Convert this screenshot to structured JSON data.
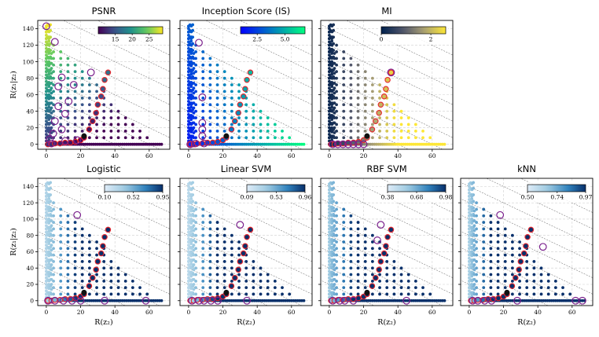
{
  "figure": {
    "description_labels": {
      "x_label": "R(z₂)",
      "y_label": "R(z₁|z₂)"
    }
  },
  "colors": {
    "pareto_edge": "#e8242a",
    "highlight_ring": "#7a1f8c",
    "selected_marker": "#111111",
    "grid": "#cfcfcf",
    "isoline": "#555555"
  },
  "chart_data": [
    {
      "type": "scatter",
      "title": "PSNR",
      "xlabel": "",
      "ylabel": "R(z₁|z₂)",
      "xlim": [
        -5,
        72
      ],
      "ylim": [
        -6,
        150
      ],
      "xticks": [
        "0",
        "20",
        "40",
        "60"
      ],
      "yticks": [
        "0",
        "20",
        "40",
        "60",
        "80",
        "100",
        "120",
        "140"
      ],
      "colormap": "viridis",
      "colorbar": {
        "range": [
          10,
          29
        ],
        "ticks": [
          "15",
          "20",
          "25"
        ],
        "tick_values": [
          15,
          20,
          25
        ]
      },
      "color_trend": "decreases with R(z2), increases with R(z1|z2)"
    },
    {
      "type": "scatter",
      "title": "Inception Score (IS)",
      "xlabel": "",
      "ylabel": "",
      "xlim": [
        -5,
        72
      ],
      "ylim": [
        -6,
        150
      ],
      "xticks": [
        "0",
        "20",
        "40",
        "60"
      ],
      "yticks": [],
      "colormap": "winter",
      "colorbar": {
        "range": [
          1.0,
          6.8
        ],
        "ticks": [
          "2.5",
          "5.0"
        ],
        "tick_values": [
          2.5,
          5.0
        ]
      },
      "color_trend": "increases with R(z2)"
    },
    {
      "type": "scatter",
      "title": "MI",
      "xlabel": "",
      "ylabel": "",
      "xlim": [
        -5,
        72
      ],
      "ylim": [
        -6,
        150
      ],
      "xticks": [
        "0",
        "20",
        "40",
        "60"
      ],
      "yticks": [],
      "colormap": "cividis",
      "colorbar": {
        "range": [
          0,
          2.6
        ],
        "ticks": [
          "0",
          "2"
        ],
        "tick_values": [
          0,
          2
        ]
      },
      "color_trend": "increases with R(z2)"
    },
    {
      "type": "scatter",
      "title": "Logistic",
      "xlabel": "R(z₂)",
      "ylabel": "R(z₁|z₂)",
      "xlim": [
        -5,
        72
      ],
      "ylim": [
        -6,
        150
      ],
      "xticks": [
        "0",
        "20",
        "40",
        "60"
      ],
      "yticks": [
        "0",
        "20",
        "40",
        "60",
        "80",
        "100",
        "120",
        "140"
      ],
      "colormap": "blues",
      "colorbar": {
        "range": [
          0.1,
          0.95
        ],
        "ticks": [
          "0.10",
          "0.52",
          "0.95"
        ],
        "tick_values": [
          0.1,
          0.52,
          0.95
        ]
      },
      "color_trend": "saturates quickly with R(z2)"
    },
    {
      "type": "scatter",
      "title": "Linear SVM",
      "xlabel": "R(z₂)",
      "ylabel": "",
      "xlim": [
        -5,
        72
      ],
      "ylim": [
        -6,
        150
      ],
      "xticks": [
        "0",
        "20",
        "40",
        "60"
      ],
      "yticks": [],
      "colormap": "blues",
      "colorbar": {
        "range": [
          0.09,
          0.96
        ],
        "ticks": [
          "0.09",
          "0.53",
          "0.96"
        ],
        "tick_values": [
          0.09,
          0.53,
          0.96
        ]
      },
      "color_trend": "saturates quickly with R(z2)"
    },
    {
      "type": "scatter",
      "title": "RBF SVM",
      "xlabel": "R(z₂)",
      "ylabel": "",
      "xlim": [
        -5,
        72
      ],
      "ylim": [
        -6,
        150
      ],
      "xticks": [
        "0",
        "20",
        "40",
        "60"
      ],
      "yticks": [],
      "colormap": "blues",
      "colorbar": {
        "range": [
          0.38,
          0.98
        ],
        "ticks": [
          "0.38",
          "0.68",
          "0.98"
        ],
        "tick_values": [
          0.38,
          0.68,
          0.98
        ]
      },
      "color_trend": "saturates quickly with R(z2)"
    },
    {
      "type": "scatter",
      "title": "kNN",
      "xlabel": "R(z₂)",
      "ylabel": "",
      "xlim": [
        -5,
        72
      ],
      "ylim": [
        -6,
        150
      ],
      "xticks": [
        "0",
        "20",
        "40",
        "60"
      ],
      "yticks": [],
      "colormap": "blues",
      "colorbar": {
        "range": [
          0.5,
          0.97
        ],
        "ticks": [
          "0.50",
          "0.74",
          "0.97"
        ],
        "tick_values": [
          0.5,
          0.74,
          0.97
        ]
      },
      "color_trend": "saturates quickly with R(z2)"
    }
  ],
  "isolines": {
    "sums": [
      20,
      40,
      60,
      80,
      100,
      120,
      140,
      160,
      180
    ]
  },
  "pareto_path": [
    {
      "x": 22,
      "y": 8
    },
    {
      "x": 25,
      "y": 18
    },
    {
      "x": 27,
      "y": 28
    },
    {
      "x": 29,
      "y": 38
    },
    {
      "x": 30,
      "y": 48
    },
    {
      "x": 32,
      "y": 58
    },
    {
      "x": 33,
      "y": 67
    },
    {
      "x": 34,
      "y": 78
    },
    {
      "x": 36,
      "y": 87
    }
  ],
  "pareto_tail": [
    {
      "x": 1,
      "y": 0
    },
    {
      "x": 3,
      "y": 0
    },
    {
      "x": 5,
      "y": 1
    },
    {
      "x": 8,
      "y": 1
    },
    {
      "x": 11,
      "y": 2
    },
    {
      "x": 14,
      "y": 2
    },
    {
      "x": 17,
      "y": 3
    },
    {
      "x": 20,
      "y": 5
    }
  ],
  "selected_point": {
    "x": 22,
    "y": 10
  },
  "highlighted_points": [
    [
      {
        "x": 0,
        "y": 143
      },
      {
        "x": 5,
        "y": 124
      },
      {
        "x": 9,
        "y": 81
      },
      {
        "x": 7,
        "y": 70
      },
      {
        "x": 16,
        "y": 72
      },
      {
        "x": 7,
        "y": 46
      },
      {
        "x": 13,
        "y": 52
      },
      {
        "x": 11,
        "y": 37
      },
      {
        "x": 5,
        "y": 28
      },
      {
        "x": 9,
        "y": 18
      },
      {
        "x": 4,
        "y": 13
      },
      {
        "x": 2,
        "y": 6
      },
      {
        "x": 3,
        "y": 1
      },
      {
        "x": 11,
        "y": 4
      },
      {
        "x": 18,
        "y": 5
      },
      {
        "x": 26,
        "y": 87
      }
    ],
    [
      {
        "x": 6,
        "y": 123
      },
      {
        "x": 8,
        "y": 57
      },
      {
        "x": 8,
        "y": 26
      },
      {
        "x": 8,
        "y": 18
      },
      {
        "x": 8,
        "y": 10
      },
      {
        "x": 9,
        "y": 1
      },
      {
        "x": 1,
        "y": 0
      },
      {
        "x": 4,
        "y": 1
      }
    ],
    [
      {
        "x": 36,
        "y": 87
      },
      {
        "x": 2,
        "y": 0
      },
      {
        "x": 5,
        "y": 0
      },
      {
        "x": 8,
        "y": 0
      },
      {
        "x": 11,
        "y": 0
      },
      {
        "x": 14,
        "y": 0
      },
      {
        "x": 17,
        "y": 0
      },
      {
        "x": 20,
        "y": 0
      }
    ],
    [
      {
        "x": 18,
        "y": 105
      },
      {
        "x": 1,
        "y": 0
      },
      {
        "x": 5,
        "y": 0
      },
      {
        "x": 10,
        "y": 0
      },
      {
        "x": 15,
        "y": 0
      },
      {
        "x": 20,
        "y": 0
      },
      {
        "x": 34,
        "y": 0
      },
      {
        "x": 58,
        "y": 0
      }
    ],
    [
      {
        "x": 30,
        "y": 93
      },
      {
        "x": 2,
        "y": 0
      },
      {
        "x": 6,
        "y": 0
      },
      {
        "x": 9,
        "y": 0
      },
      {
        "x": 13,
        "y": 0
      },
      {
        "x": 17,
        "y": 0
      },
      {
        "x": 34,
        "y": 0
      }
    ],
    [
      {
        "x": 30,
        "y": 93
      },
      {
        "x": 28,
        "y": 74
      },
      {
        "x": 2,
        "y": 0
      },
      {
        "x": 6,
        "y": 0
      },
      {
        "x": 9,
        "y": 0
      },
      {
        "x": 14,
        "y": 0
      },
      {
        "x": 45,
        "y": 0
      }
    ],
    [
      {
        "x": 18,
        "y": 105
      },
      {
        "x": 43,
        "y": 66
      },
      {
        "x": 2,
        "y": 0
      },
      {
        "x": 5,
        "y": 0
      },
      {
        "x": 9,
        "y": 0
      },
      {
        "x": 13,
        "y": 0
      },
      {
        "x": 28,
        "y": 0
      },
      {
        "x": 62,
        "y": 0
      },
      {
        "x": 66,
        "y": 0
      }
    ]
  ]
}
